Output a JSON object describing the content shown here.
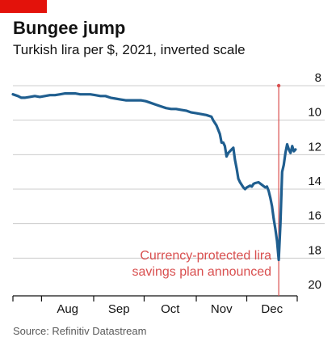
{
  "header": {
    "title": "Bungee jump",
    "subtitle": "Turkish lira per $, 2021, inverted scale"
  },
  "footer": {
    "source": "Source: Refinitiv Datastream"
  },
  "colors": {
    "line": "#1f5e8f",
    "accent": "#e3120b",
    "annotation": "#d94f4f",
    "grid": "#cccccc",
    "axis": "#121212"
  },
  "chart_data": {
    "type": "line",
    "title": "Bungee jump",
    "subtitle": "Turkish lira per $, 2021, inverted scale",
    "xlabel": "",
    "ylabel": "",
    "y_inverted": true,
    "ylim": [
      8,
      20
    ],
    "y_ticks": [
      8,
      10,
      12,
      14,
      16,
      18,
      20
    ],
    "x_range": [
      "2021-07-15",
      "2021-12-31"
    ],
    "x_ticks": [
      "Aug",
      "Sep",
      "Oct",
      "Nov",
      "Dec"
    ],
    "grid": true,
    "series": [
      {
        "x": [
          "2021-07-15",
          "2021-07-18",
          "2021-07-20",
          "2021-07-22",
          "2021-07-25",
          "2021-07-28",
          "2021-07-31",
          "2021-08-03",
          "2021-08-06",
          "2021-08-09",
          "2021-08-12",
          "2021-08-15",
          "2021-08-18",
          "2021-08-21",
          "2021-08-24",
          "2021-08-27",
          "2021-08-30",
          "2021-09-02",
          "2021-09-05",
          "2021-09-08",
          "2021-09-11",
          "2021-09-14",
          "2021-09-17",
          "2021-09-20",
          "2021-09-23",
          "2021-09-26",
          "2021-09-29",
          "2021-10-02",
          "2021-10-05",
          "2021-10-08",
          "2021-10-11",
          "2021-10-14",
          "2021-10-17",
          "2021-10-20",
          "2021-10-23",
          "2021-10-26",
          "2021-10-29",
          "2021-11-01",
          "2021-11-04",
          "2021-11-07",
          "2021-11-10",
          "2021-11-11",
          "2021-11-13",
          "2021-11-15",
          "2021-11-16",
          "2021-11-17",
          "2021-11-18",
          "2021-11-19",
          "2021-11-20",
          "2021-11-21",
          "2021-11-22",
          "2021-11-23",
          "2021-11-24",
          "2021-11-25",
          "2021-11-26",
          "2021-11-27",
          "2021-11-29",
          "2021-11-30",
          "2021-12-01",
          "2021-12-02",
          "2021-12-03",
          "2021-12-04",
          "2021-12-05",
          "2021-12-06",
          "2021-12-08",
          "2021-12-10",
          "2021-12-12",
          "2021-12-13",
          "2021-12-14",
          "2021-12-15",
          "2021-12-16",
          "2021-12-17",
          "2021-12-18",
          "2021-12-19",
          "2021-12-20",
          "2021-12-21",
          "2021-12-22",
          "2021-12-23",
          "2021-12-24",
          "2021-12-25",
          "2021-12-26",
          "2021-12-27",
          "2021-12-28",
          "2021-12-29",
          "2021-12-30"
        ],
        "y": [
          8.5,
          8.6,
          8.7,
          8.7,
          8.65,
          8.6,
          8.65,
          8.6,
          8.55,
          8.55,
          8.5,
          8.45,
          8.45,
          8.45,
          8.5,
          8.5,
          8.5,
          8.55,
          8.6,
          8.6,
          8.7,
          8.75,
          8.8,
          8.85,
          8.85,
          8.85,
          8.85,
          8.9,
          9.0,
          9.1,
          9.2,
          9.3,
          9.35,
          9.35,
          9.4,
          9.45,
          9.55,
          9.6,
          9.65,
          9.7,
          9.8,
          10.0,
          10.3,
          10.8,
          11.3,
          11.3,
          11.5,
          12.1,
          11.9,
          11.8,
          11.7,
          11.6,
          12.3,
          12.8,
          13.4,
          13.6,
          13.9,
          14.0,
          13.9,
          13.85,
          13.8,
          13.85,
          13.7,
          13.65,
          13.6,
          13.75,
          13.9,
          13.85,
          14.1,
          14.5,
          15.0,
          15.7,
          16.3,
          17.0,
          18.1,
          16.0,
          13.0,
          12.6,
          11.9,
          11.4,
          11.7,
          11.9,
          11.5,
          11.8,
          11.7
        ]
      }
    ],
    "annotations": [
      {
        "x": "2021-12-20",
        "lines": [
          "Currency-protected lira",
          "savings plan announced"
        ]
      }
    ]
  }
}
